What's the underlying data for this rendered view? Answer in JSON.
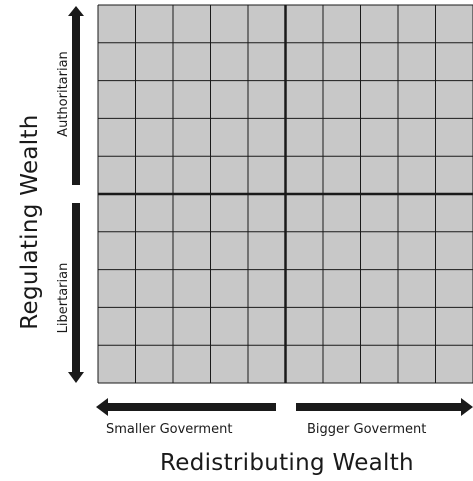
{
  "diagram": {
    "y_axis_title": "Regulating Wealth",
    "y_top_label": "Authoritarian",
    "y_bottom_label": "Libertarian",
    "x_axis_title": "Redistributing Wealth",
    "x_left_label": "Smaller Goverment",
    "x_right_label": "Bigger Goverment",
    "grid": {
      "columns": 10,
      "rows": 10
    },
    "colors": {
      "cell_fill": "#c8c8c8",
      "grid_line": "#1a1a1a",
      "background": "#ffffff"
    }
  }
}
